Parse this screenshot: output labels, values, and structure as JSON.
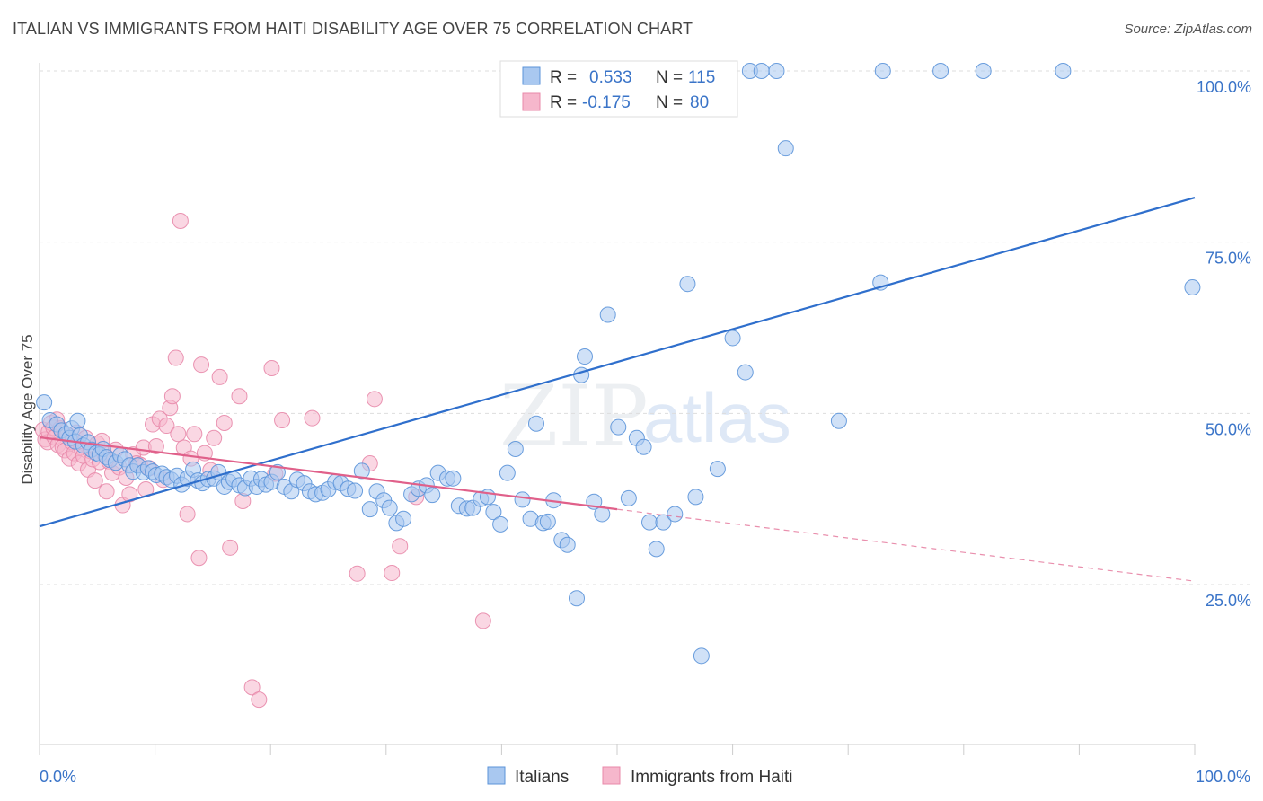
{
  "header": {
    "title": "ITALIAN VS IMMIGRANTS FROM HAITI DISABILITY AGE OVER 75 CORRELATION CHART",
    "source": "Source: ZipAtlas.com"
  },
  "watermark": {
    "part1": "ZIP",
    "part2": "atlas"
  },
  "stats": {
    "italians": {
      "r_label": "R =",
      "r": "0.533",
      "n_label": "N =",
      "n": "115"
    },
    "haiti": {
      "r_label": "R =",
      "r": "-0.175",
      "n_label": "N =",
      "n": "80"
    }
  },
  "chart_data": {
    "type": "scatter",
    "title": "ITALIAN VS IMMIGRANTS FROM HAITI DISABILITY AGE OVER 75 CORRELATION CHART",
    "xlabel": "",
    "ylabel": "Disability Age Over 75",
    "xlim": [
      0,
      100
    ],
    "ylim": [
      0,
      100
    ],
    "x_tick_labels": [
      "0.0%",
      "100.0%"
    ],
    "y_ticks": [
      25,
      50,
      75,
      100
    ],
    "y_tick_labels": [
      "25.0%",
      "50.0%",
      "75.0%",
      "100.0%"
    ],
    "grid": true,
    "legend_position": "bottom-center",
    "colors": {
      "italians_fill": "#a9c8f0",
      "italians_stroke": "#5b93d9",
      "italians_line": "#2f6fcc",
      "haiti_fill": "#f6b7cc",
      "haiti_stroke": "#e888aa",
      "haiti_line": "#e0608a",
      "tick_label": "#3a74c8"
    },
    "series": [
      {
        "name": "Italians",
        "trend": {
          "x": [
            0,
            100
          ],
          "y": [
            33.5,
            81.5
          ],
          "solid_until": 100
        },
        "points": [
          [
            0.4,
            51.6
          ],
          [
            0.9,
            49.0
          ],
          [
            1.5,
            48.4
          ],
          [
            1.9,
            47.5
          ],
          [
            2.3,
            47.0
          ],
          [
            2.6,
            46.4
          ],
          [
            2.8,
            47.8
          ],
          [
            3.1,
            45.9
          ],
          [
            3.3,
            48.9
          ],
          [
            3.5,
            46.8
          ],
          [
            3.8,
            45.3
          ],
          [
            4.2,
            45.8
          ],
          [
            4.5,
            44.7
          ],
          [
            4.9,
            44.2
          ],
          [
            5.2,
            44.0
          ],
          [
            5.5,
            44.8
          ],
          [
            5.8,
            43.6
          ],
          [
            6.1,
            43.2
          ],
          [
            6.6,
            42.8
          ],
          [
            7.0,
            43.9
          ],
          [
            7.4,
            43.3
          ],
          [
            7.8,
            42.4
          ],
          [
            8.1,
            41.5
          ],
          [
            8.5,
            42.4
          ],
          [
            9.0,
            41.4
          ],
          [
            9.4,
            42.0
          ],
          [
            9.8,
            41.5
          ],
          [
            10.1,
            41.0
          ],
          [
            10.6,
            41.2
          ],
          [
            11.0,
            40.7
          ],
          [
            11.4,
            40.3
          ],
          [
            11.9,
            40.9
          ],
          [
            12.3,
            39.6
          ],
          [
            12.8,
            40.5
          ],
          [
            13.3,
            41.8
          ],
          [
            13.7,
            40.2
          ],
          [
            14.1,
            39.8
          ],
          [
            14.6,
            40.4
          ],
          [
            15.1,
            40.5
          ],
          [
            15.5,
            41.4
          ],
          [
            16.0,
            39.3
          ],
          [
            16.4,
            40.0
          ],
          [
            16.8,
            40.4
          ],
          [
            17.3,
            39.5
          ],
          [
            17.8,
            39.1
          ],
          [
            18.3,
            40.5
          ],
          [
            18.8,
            39.3
          ],
          [
            19.2,
            40.4
          ],
          [
            19.6,
            39.6
          ],
          [
            20.1,
            40.0
          ],
          [
            20.6,
            41.4
          ],
          [
            21.2,
            39.3
          ],
          [
            21.8,
            38.6
          ],
          [
            22.3,
            40.3
          ],
          [
            22.9,
            39.8
          ],
          [
            23.4,
            38.6
          ],
          [
            23.9,
            38.2
          ],
          [
            24.5,
            38.4
          ],
          [
            25.0,
            38.9
          ],
          [
            25.6,
            40.0
          ],
          [
            26.1,
            39.8
          ],
          [
            26.7,
            39.0
          ],
          [
            27.3,
            38.7
          ],
          [
            27.9,
            41.6
          ],
          [
            28.6,
            36.0
          ],
          [
            29.2,
            38.6
          ],
          [
            29.8,
            37.3
          ],
          [
            30.3,
            36.2
          ],
          [
            30.9,
            34.0
          ],
          [
            31.5,
            34.6
          ],
          [
            32.2,
            38.2
          ],
          [
            32.8,
            39.0
          ],
          [
            33.5,
            39.5
          ],
          [
            34.0,
            38.1
          ],
          [
            34.5,
            41.3
          ],
          [
            35.3,
            40.5
          ],
          [
            35.8,
            40.5
          ],
          [
            36.3,
            36.5
          ],
          [
            37.0,
            36.1
          ],
          [
            37.5,
            36.2
          ],
          [
            38.2,
            37.5
          ],
          [
            38.8,
            37.8
          ],
          [
            39.3,
            35.6
          ],
          [
            39.9,
            33.8
          ],
          [
            40.5,
            41.3
          ],
          [
            41.2,
            44.8
          ],
          [
            41.8,
            37.4
          ],
          [
            42.5,
            34.6
          ],
          [
            43.0,
            48.5
          ],
          [
            43.6,
            34.0
          ],
          [
            44.0,
            34.2
          ],
          [
            44.5,
            37.3
          ],
          [
            45.2,
            31.5
          ],
          [
            45.7,
            30.8
          ],
          [
            46.5,
            23.0
          ],
          [
            46.9,
            55.6
          ],
          [
            47.2,
            58.3
          ],
          [
            48.0,
            37.1
          ],
          [
            48.7,
            35.3
          ],
          [
            49.2,
            64.4
          ],
          [
            50.1,
            48.0
          ],
          [
            51.0,
            37.6
          ],
          [
            51.7,
            46.4
          ],
          [
            52.3,
            45.1
          ],
          [
            52.8,
            34.1
          ],
          [
            53.4,
            30.2
          ],
          [
            54.0,
            34.1
          ],
          [
            55.0,
            35.3
          ],
          [
            56.1,
            68.9
          ],
          [
            56.8,
            37.8
          ],
          [
            57.3,
            14.6
          ],
          [
            58.7,
            41.9
          ],
          [
            60.0,
            61.0
          ],
          [
            61.1,
            56.0
          ],
          [
            61.5,
            100.0
          ],
          [
            62.5,
            100.0
          ],
          [
            63.8,
            100.0
          ],
          [
            64.6,
            88.7
          ],
          [
            69.2,
            48.9
          ],
          [
            72.8,
            69.1
          ],
          [
            73.0,
            100.0
          ],
          [
            78.0,
            100.0
          ],
          [
            81.7,
            100.0
          ],
          [
            88.6,
            100.0
          ],
          [
            99.8,
            68.4
          ]
        ]
      },
      {
        "name": "Immigrants from Haiti",
        "trend": {
          "x": [
            0,
            100
          ],
          "y": [
            46.5,
            25.5
          ],
          "solid_until": 50
        },
        "points": [
          [
            0.3,
            47.6
          ],
          [
            0.5,
            46.2
          ],
          [
            0.7,
            45.8
          ],
          [
            0.8,
            47.3
          ],
          [
            1.0,
            48.6
          ],
          [
            1.2,
            47.9
          ],
          [
            1.3,
            46.5
          ],
          [
            1.5,
            49.1
          ],
          [
            1.6,
            45.4
          ],
          [
            1.8,
            47.8
          ],
          [
            2.0,
            45.1
          ],
          [
            2.2,
            44.6
          ],
          [
            2.4,
            46.9
          ],
          [
            2.6,
            43.4
          ],
          [
            2.8,
            45.8
          ],
          [
            3.0,
            44.2
          ],
          [
            3.2,
            47.2
          ],
          [
            3.4,
            42.7
          ],
          [
            3.6,
            45.0
          ],
          [
            3.8,
            43.8
          ],
          [
            4.0,
            46.4
          ],
          [
            4.2,
            41.8
          ],
          [
            4.4,
            44.5
          ],
          [
            4.6,
            43.3
          ],
          [
            4.8,
            40.2
          ],
          [
            5.0,
            45.6
          ],
          [
            5.2,
            42.9
          ],
          [
            5.4,
            46.0
          ],
          [
            5.6,
            44.1
          ],
          [
            5.8,
            38.6
          ],
          [
            6.0,
            43.0
          ],
          [
            6.3,
            41.3
          ],
          [
            6.6,
            44.7
          ],
          [
            6.9,
            42.1
          ],
          [
            7.2,
            36.6
          ],
          [
            7.5,
            40.6
          ],
          [
            7.8,
            38.2
          ],
          [
            8.1,
            44.0
          ],
          [
            8.4,
            42.7
          ],
          [
            8.7,
            42.5
          ],
          [
            9.0,
            45.0
          ],
          [
            9.2,
            38.9
          ],
          [
            9.5,
            42.0
          ],
          [
            9.8,
            48.4
          ],
          [
            10.1,
            45.2
          ],
          [
            10.4,
            49.2
          ],
          [
            10.7,
            40.3
          ],
          [
            11.0,
            48.2
          ],
          [
            11.3,
            50.8
          ],
          [
            11.5,
            52.5
          ],
          [
            11.8,
            58.1
          ],
          [
            12.0,
            47.0
          ],
          [
            12.2,
            78.1
          ],
          [
            12.5,
            45.0
          ],
          [
            12.8,
            35.3
          ],
          [
            13.1,
            43.4
          ],
          [
            13.4,
            47.0
          ],
          [
            13.8,
            28.9
          ],
          [
            14.0,
            57.1
          ],
          [
            14.3,
            44.2
          ],
          [
            14.8,
            41.7
          ],
          [
            15.1,
            46.4
          ],
          [
            15.6,
            55.3
          ],
          [
            16.0,
            48.6
          ],
          [
            16.5,
            30.4
          ],
          [
            17.3,
            52.5
          ],
          [
            17.6,
            37.2
          ],
          [
            18.4,
            10.0
          ],
          [
            19.0,
            8.2
          ],
          [
            20.1,
            56.6
          ],
          [
            20.4,
            41.2
          ],
          [
            21.0,
            49.0
          ],
          [
            23.6,
            49.3
          ],
          [
            27.5,
            26.6
          ],
          [
            28.6,
            42.7
          ],
          [
            29.0,
            52.1
          ],
          [
            30.5,
            26.7
          ],
          [
            31.2,
            30.6
          ],
          [
            32.6,
            37.8
          ],
          [
            38.4,
            19.7
          ]
        ]
      }
    ]
  },
  "legend": {
    "italians": "Italians",
    "haiti": "Immigrants from Haiti"
  }
}
